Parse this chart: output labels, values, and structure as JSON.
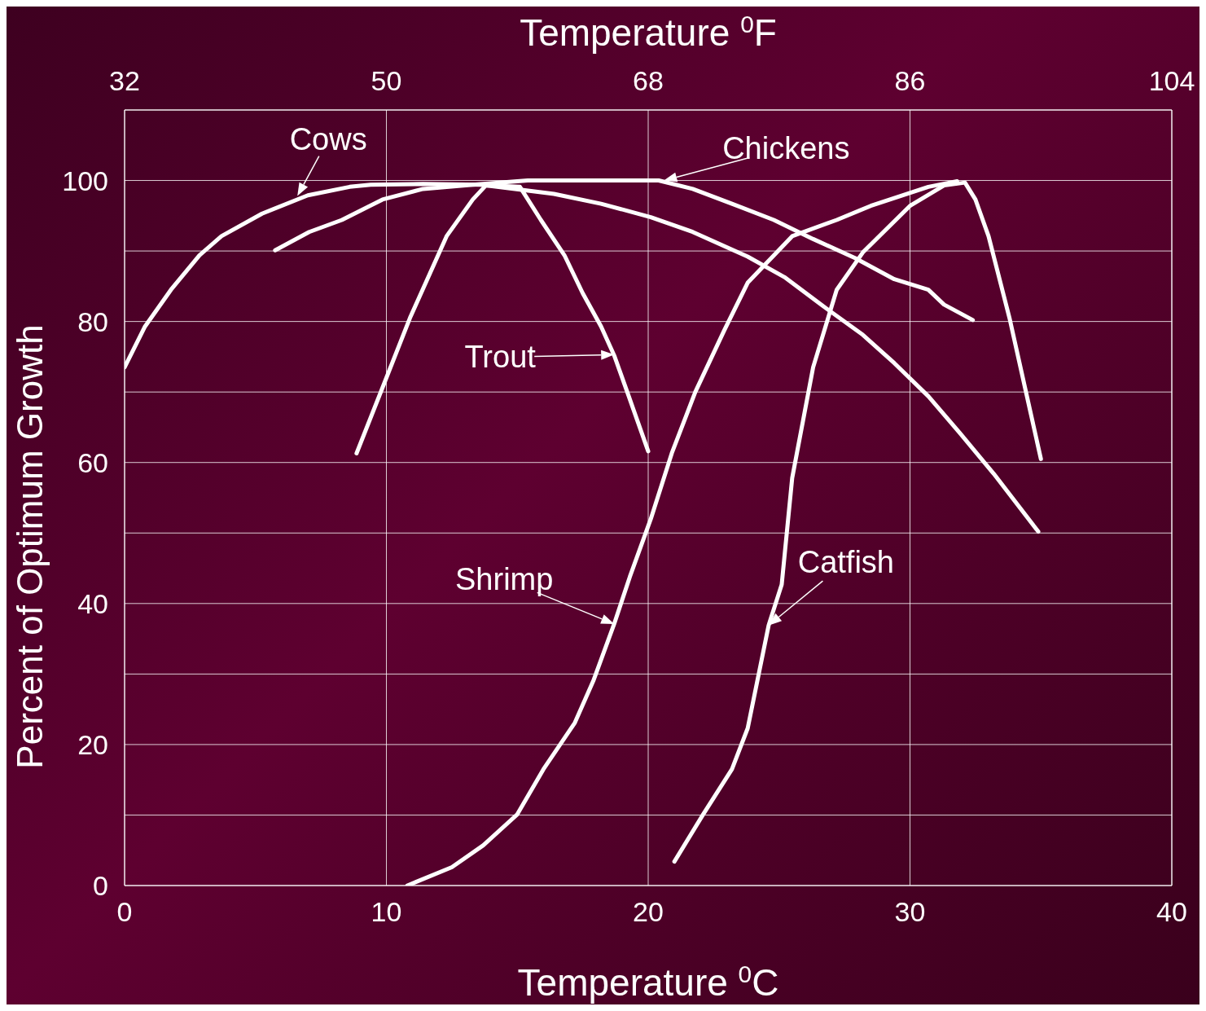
{
  "chart_data": {
    "type": "line",
    "xlabel": "Temperature $^{0}$C",
    "x2label": "Temperature $^{0}$F",
    "ylabel": "Percent of Optimum Growth",
    "xlim": [
      0,
      40
    ],
    "xticks": [
      0,
      10,
      20,
      30,
      40
    ],
    "x2lim": [
      32,
      104
    ],
    "x2ticks": [
      32,
      50,
      68,
      86,
      104
    ],
    "ylim": [
      0,
      110
    ],
    "yticks": [
      0,
      {
        "value": 10,
        "label": null
      },
      20,
      {
        "value": 30,
        "label": null
      },
      40,
      {
        "value": 50,
        "label": null
      },
      60,
      {
        "value": 70,
        "label": null
      },
      80,
      {
        "value": 90,
        "label": null
      },
      100,
      {
        "value": 110,
        "label": null
      }
    ],
    "grid": true,
    "legend": false,
    "marker": "none",
    "line_style": "solid",
    "series": [
      {
        "color": "#ffffff",
        "x": [
          0,
          0.78,
          1.77,
          2.86,
          3.7,
          5.25,
          7.0,
          8.6,
          9.4,
          11.4,
          13.6,
          15.1,
          16.4,
          18.2,
          20.1,
          21.7,
          23.8,
          25.2,
          26.6,
          28.2,
          29.4,
          30.7,
          31.9,
          33.2,
          34.9
        ],
        "values": [
          73.5,
          79.3,
          84.5,
          89.4,
          92.1,
          95.3,
          97.9,
          99.1,
          99.4,
          99.5,
          99.4,
          98.7,
          98.1,
          96.7,
          94.8,
          92.7,
          89.2,
          86.3,
          82.4,
          78.1,
          74.1,
          69.4,
          64.2,
          58.4,
          50.2
        ]
      },
      {
        "color": "#ffffff",
        "x": [
          5.75,
          7.05,
          8.3,
          9.85,
          11.4,
          13.3,
          15.4,
          20.4,
          21.7,
          23.2,
          24.8,
          26.3,
          27.9,
          29.4,
          30.7,
          31.3,
          32.4
        ],
        "values": [
          90.1,
          92.7,
          94.4,
          97.3,
          98.8,
          99.4,
          100,
          100,
          98.8,
          96.7,
          94.4,
          91.7,
          89,
          86,
          84.5,
          82.4,
          80.2
        ]
      },
      {
        "color": "#ffffff",
        "x": [
          8.86,
          9.85,
          10.9,
          12.3,
          13.3,
          13.8,
          15.1,
          15.9,
          16.8,
          17.5,
          18.2,
          18.7,
          19.2,
          20
        ],
        "values": [
          61.3,
          70.6,
          80.5,
          92.1,
          97.3,
          99.3,
          99.1,
          94.4,
          89.4,
          84,
          79.3,
          75.2,
          70,
          61.6
        ]
      },
      {
        "color": "#ffffff",
        "x": [
          10.8,
          12.5,
          13.7,
          15,
          16,
          17.2,
          17.9,
          18.7,
          19.3,
          20.1,
          20.9,
          21.8,
          22.9,
          23.8,
          25.5,
          27.2,
          28.5,
          30.7,
          31.8
        ],
        "values": [
          0,
          2.6,
          5.7,
          10.1,
          16.5,
          23.1,
          29,
          37.1,
          43.8,
          52,
          61.3,
          70,
          78.7,
          85.5,
          92.1,
          94.4,
          96.4,
          99.1,
          99.9
        ]
      },
      {
        "color": "#ffffff",
        "x": [
          21,
          22.1,
          23.2,
          23.8,
          24.6,
          25.1,
          25.5,
          26.3,
          27.2,
          28.2,
          30,
          31.3,
          32.1,
          32.5,
          33,
          33.8,
          35
        ],
        "values": [
          3.4,
          10.1,
          16.5,
          22.3,
          36.9,
          42.7,
          57.8,
          73.5,
          84.5,
          89.8,
          96.4,
          99.3,
          99.7,
          97.3,
          92.1,
          80.5,
          60.5
        ]
      }
    ],
    "annotations": [
      {
        "text": "Cows",
        "x": 6.6,
        "y": 97.8
      },
      {
        "text": "Chickens",
        "x": 20.6,
        "y": 100
      },
      {
        "text": "Trout",
        "x": 18.7,
        "y": 75.3
      },
      {
        "text": "Shrimp",
        "x": 18.7,
        "y": 37.1
      },
      {
        "text": "Catfish",
        "x": 24.6,
        "y": 36.9
      }
    ]
  }
}
